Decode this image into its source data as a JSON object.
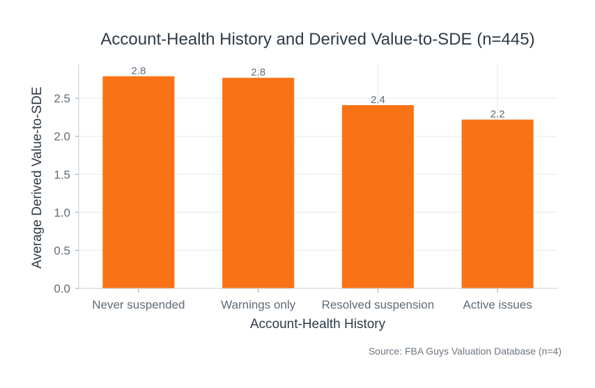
{
  "chart_data": {
    "type": "bar",
    "title": "Account-Health History and Derived Value-to-SDE (n=445)",
    "xlabel": "Account-Health History",
    "ylabel": "Average Derived Value-to-SDE",
    "categories": [
      "Never suspended",
      "Warnings only",
      "Resolved suspension",
      "Active issues"
    ],
    "values": [
      2.79,
      2.77,
      2.41,
      2.22
    ],
    "data_labels": [
      "2.8",
      "2.8",
      "2.4",
      "2.2"
    ],
    "ylim": [
      0,
      2.95
    ],
    "yticks": [
      0.0,
      0.5,
      1.0,
      1.5,
      2.0,
      2.5
    ],
    "ytick_labels": [
      "0.0",
      "0.5",
      "1.0",
      "1.5",
      "2.0",
      "2.5"
    ],
    "bar_color": "#f97316",
    "grid": true,
    "source": "Source: FBA Guys Valuation Database (n=4)"
  }
}
